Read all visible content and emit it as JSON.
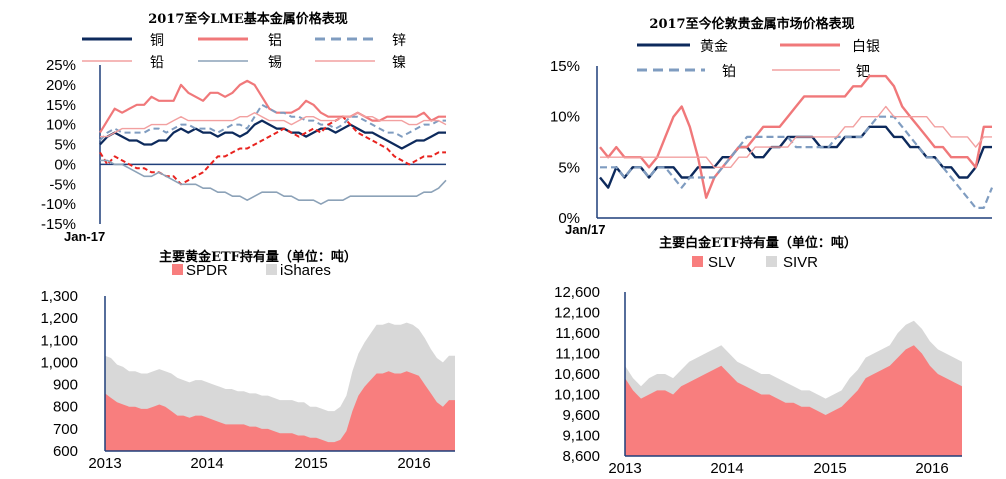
{
  "colors": {
    "navy": "#0d2a5c",
    "salmon": "#f0787a",
    "blue_grey": "#7f9cc0",
    "red_dash": "#e8231f",
    "pink_light": "#f2a0a0",
    "slate": "#8ca2b8",
    "etf_red": "#f87e7e",
    "etf_grey": "#d8d8d8",
    "axis": "#1f3f7a"
  },
  "chart_data": [
    {
      "id": "lme",
      "type": "line",
      "title": "2017至今LME基本金属价格表现",
      "x_start_label": "Jan-17",
      "ylim": [
        -15,
        25
      ],
      "y_ticks": [
        "25%",
        "20%",
        "15%",
        "10%",
        "5%",
        "0%",
        "-5%",
        "-10%",
        "-15%"
      ],
      "y_tick_values": [
        25,
        20,
        15,
        10,
        5,
        0,
        -5,
        -10,
        -15
      ],
      "series": [
        {
          "name": "铜",
          "color": "#0d2a5c",
          "dash": "",
          "width": 2.2,
          "values": [
            5,
            7,
            8,
            7,
            6,
            6,
            5,
            5,
            6,
            6,
            8,
            9,
            8,
            9,
            8,
            8,
            7,
            8,
            8,
            7,
            8,
            10,
            11,
            10,
            9,
            9,
            8,
            8,
            7,
            8,
            9,
            9,
            8,
            9,
            10,
            9,
            8,
            8,
            7,
            6,
            5,
            4,
            5,
            6,
            6,
            7,
            8,
            8
          ]
        },
        {
          "name": "铝",
          "color": "#f0787a",
          "dash": "",
          "width": 2.2,
          "values": [
            8,
            11,
            14,
            13,
            14,
            15,
            15,
            17,
            16,
            16,
            16,
            20,
            18,
            17,
            16,
            18,
            18,
            17,
            18,
            20,
            21,
            20,
            17,
            14,
            13,
            13,
            13,
            14,
            16,
            15,
            13,
            12,
            12,
            12,
            12,
            13,
            12,
            11,
            11,
            12,
            12,
            12,
            12,
            12,
            13,
            11,
            12,
            12
          ]
        },
        {
          "name": "锌",
          "color": "#7f9cc0",
          "dash": "6,4",
          "width": 2,
          "values": [
            6,
            8,
            9,
            8,
            8,
            8,
            8,
            9,
            9,
            8,
            9,
            10,
            10,
            9,
            9,
            9,
            8,
            9,
            10,
            10,
            9,
            12,
            15,
            14,
            13,
            13,
            12,
            12,
            11,
            11,
            10,
            10,
            9,
            10,
            12,
            12,
            11,
            10,
            9,
            8,
            8,
            7,
            8,
            9,
            10,
            10,
            11,
            11
          ]
        },
        {
          "name": "铅",
          "color": "#e8231f",
          "dash": "5,3",
          "width": 2,
          "values": [
            3,
            0,
            2,
            1,
            0,
            -1,
            -1,
            -2,
            -2,
            -3,
            -3,
            -5,
            -4,
            -3,
            -2,
            0,
            2,
            2,
            3,
            4,
            4,
            5,
            6,
            7,
            8,
            9,
            8,
            7,
            8,
            9,
            8,
            10,
            11,
            12,
            10,
            8,
            7,
            6,
            5,
            4,
            2,
            1,
            0,
            1,
            2,
            2,
            3,
            3
          ]
        },
        {
          "name": "锡",
          "color": "#8ca2b8",
          "dash": "",
          "width": 1.6,
          "values": [
            1,
            1,
            0,
            0,
            -1,
            -2,
            -3,
            -3,
            -2,
            -3,
            -4,
            -5,
            -5,
            -5,
            -6,
            -6,
            -7,
            -7,
            -8,
            -8,
            -9,
            -8,
            -7,
            -7,
            -7,
            -8,
            -8,
            -9,
            -9,
            -9,
            -10,
            -9,
            -9,
            -9,
            -8,
            -8,
            -8,
            -8,
            -8,
            -8,
            -8,
            -8,
            -8,
            -8,
            -7,
            -7,
            -6,
            -4
          ]
        },
        {
          "name": "镍",
          "color": "#f2a0a0",
          "dash": "",
          "width": 1.4,
          "values": [
            7,
            7,
            8,
            9,
            9,
            9,
            9,
            10,
            10,
            10,
            11,
            12,
            11,
            11,
            11,
            11,
            11,
            11,
            11,
            12,
            12,
            13,
            12,
            11,
            11,
            11,
            10,
            11,
            12,
            12,
            11,
            11,
            11,
            12,
            12,
            13,
            12,
            12,
            11,
            11,
            11,
            11,
            10,
            10,
            11,
            11,
            11,
            10
          ]
        }
      ]
    },
    {
      "id": "precious",
      "type": "line",
      "title": "2017至今伦敦贵金属市场价格表现",
      "x_start_label": "Jan/17",
      "ylim": [
        0,
        15
      ],
      "y_ticks": [
        "15%",
        "10%",
        "5%",
        "0%"
      ],
      "y_tick_values": [
        15,
        10,
        5,
        0
      ],
      "series": [
        {
          "name": "黄金",
          "color": "#0d2a5c",
          "dash": "",
          "width": 2.4,
          "values": [
            4,
            3,
            5,
            4,
            5,
            5,
            4,
            5,
            5,
            5,
            4,
            4,
            5,
            5,
            5,
            6,
            6,
            7,
            7,
            6,
            6,
            7,
            7,
            8,
            8,
            8,
            8,
            7,
            7,
            7,
            8,
            8,
            8,
            9,
            9,
            9,
            8,
            8,
            7,
            7,
            6,
            6,
            5,
            5,
            4,
            4,
            5,
            7,
            7
          ]
        },
        {
          "name": "白银",
          "color": "#f0787a",
          "dash": "",
          "width": 2.4,
          "values": [
            7,
            6,
            7,
            6,
            6,
            6,
            5,
            6,
            8,
            10,
            11,
            9,
            6,
            2,
            4,
            5,
            6,
            7,
            7,
            8,
            9,
            9,
            9,
            10,
            11,
            12,
            12,
            12,
            12,
            12,
            12,
            13,
            13,
            14,
            14,
            14,
            13,
            11,
            10,
            9,
            8,
            7,
            7,
            6,
            6,
            6,
            5,
            9,
            9
          ]
        },
        {
          "name": "铂",
          "color": "#7f9cc0",
          "dash": "7,4",
          "width": 2.2,
          "values": [
            5,
            5,
            5,
            4,
            5,
            5,
            4,
            5,
            5,
            4,
            3,
            4,
            4,
            4,
            4,
            5,
            6,
            7,
            8,
            8,
            8,
            8,
            8,
            8,
            7,
            7,
            7,
            7,
            7,
            8,
            8,
            8,
            8,
            9,
            10,
            10,
            10,
            9,
            8,
            7,
            6,
            6,
            5,
            4,
            3,
            2,
            1,
            1,
            3
          ]
        },
        {
          "name": "钯",
          "color": "#f2a0a0",
          "dash": "",
          "width": 1.4,
          "values": [
            6,
            6,
            6,
            6,
            6,
            6,
            6,
            6,
            6,
            6,
            6,
            6,
            6,
            6,
            5,
            5,
            5,
            6,
            6,
            7,
            7,
            7,
            7,
            7,
            8,
            8,
            8,
            8,
            8,
            8,
            9,
            9,
            10,
            10,
            10,
            11,
            10,
            10,
            10,
            10,
            10,
            9,
            9,
            8,
            8,
            8,
            7,
            8,
            8
          ]
        }
      ]
    },
    {
      "id": "gold_etf",
      "type": "area",
      "title": "主要黄金ETF持有量（单位：吨）",
      "x_labels": [
        "2013",
        "2014",
        "2015",
        "2016"
      ],
      "ylim": [
        600,
        1300
      ],
      "y_ticks": [
        "1,300",
        "1,200",
        "1,100",
        "1,000",
        "900",
        "800",
        "700",
        "600"
      ],
      "y_tick_values": [
        1300,
        1200,
        1100,
        1000,
        900,
        800,
        700,
        600
      ],
      "series": [
        {
          "name": "SPDR",
          "color": "#f87e7e",
          "values": [
            860,
            840,
            820,
            810,
            800,
            800,
            790,
            790,
            800,
            810,
            800,
            780,
            760,
            760,
            750,
            760,
            760,
            750,
            740,
            730,
            720,
            720,
            720,
            720,
            710,
            710,
            700,
            700,
            690,
            680,
            680,
            680,
            670,
            670,
            660,
            660,
            650,
            640,
            640,
            650,
            690,
            780,
            850,
            890,
            920,
            950,
            950,
            960,
            950,
            950,
            960,
            950,
            940,
            900,
            860,
            820,
            800,
            830,
            830
          ]
        },
        {
          "name": "iShares",
          "color": "#d8d8d8",
          "values": [
            170,
            180,
            170,
            170,
            160,
            160,
            160,
            160,
            160,
            160,
            160,
            170,
            170,
            160,
            160,
            160,
            160,
            160,
            160,
            160,
            160,
            160,
            150,
            150,
            150,
            150,
            150,
            150,
            150,
            150,
            150,
            150,
            150,
            150,
            140,
            140,
            140,
            140,
            140,
            150,
            160,
            180,
            190,
            200,
            210,
            220,
            220,
            220,
            220,
            220,
            220,
            220,
            210,
            210,
            200,
            200,
            200,
            200,
            200
          ]
        }
      ]
    },
    {
      "id": "plat_etf",
      "type": "area",
      "title": "主要白金ETF持有量（单位：吨）",
      "x_labels": [
        "2013",
        "2014",
        "2015",
        "2016"
      ],
      "ylim": [
        8600,
        12600
      ],
      "y_ticks": [
        "12,600",
        "12,100",
        "11,600",
        "11,100",
        "10,600",
        "10,100",
        "9,600",
        "9,100",
        "8,600"
      ],
      "y_tick_values": [
        12600,
        12100,
        11600,
        11100,
        10600,
        10100,
        9600,
        9100,
        8600
      ],
      "series": [
        {
          "name": "SLV",
          "color": "#f87e7e",
          "values": [
            10500,
            10200,
            10000,
            10100,
            10200,
            10200,
            10100,
            10300,
            10400,
            10500,
            10600,
            10700,
            10800,
            10600,
            10400,
            10300,
            10200,
            10100,
            10100,
            10000,
            9900,
            9900,
            9800,
            9800,
            9700,
            9600,
            9700,
            9800,
            10000,
            10200,
            10500,
            10600,
            10700,
            10800,
            11000,
            11200,
            11300,
            11100,
            10800,
            10600,
            10500,
            10400,
            10300
          ]
        },
        {
          "name": "SIVR",
          "color": "#d8d8d8",
          "values": [
            300,
            300,
            300,
            400,
            400,
            400,
            400,
            400,
            500,
            500,
            500,
            500,
            500,
            500,
            500,
            500,
            500,
            500,
            500,
            500,
            500,
            400,
            400,
            400,
            400,
            400,
            400,
            400,
            500,
            500,
            500,
            500,
            500,
            500,
            600,
            600,
            600,
            600,
            600,
            600,
            600,
            600,
            600
          ]
        }
      ]
    }
  ]
}
